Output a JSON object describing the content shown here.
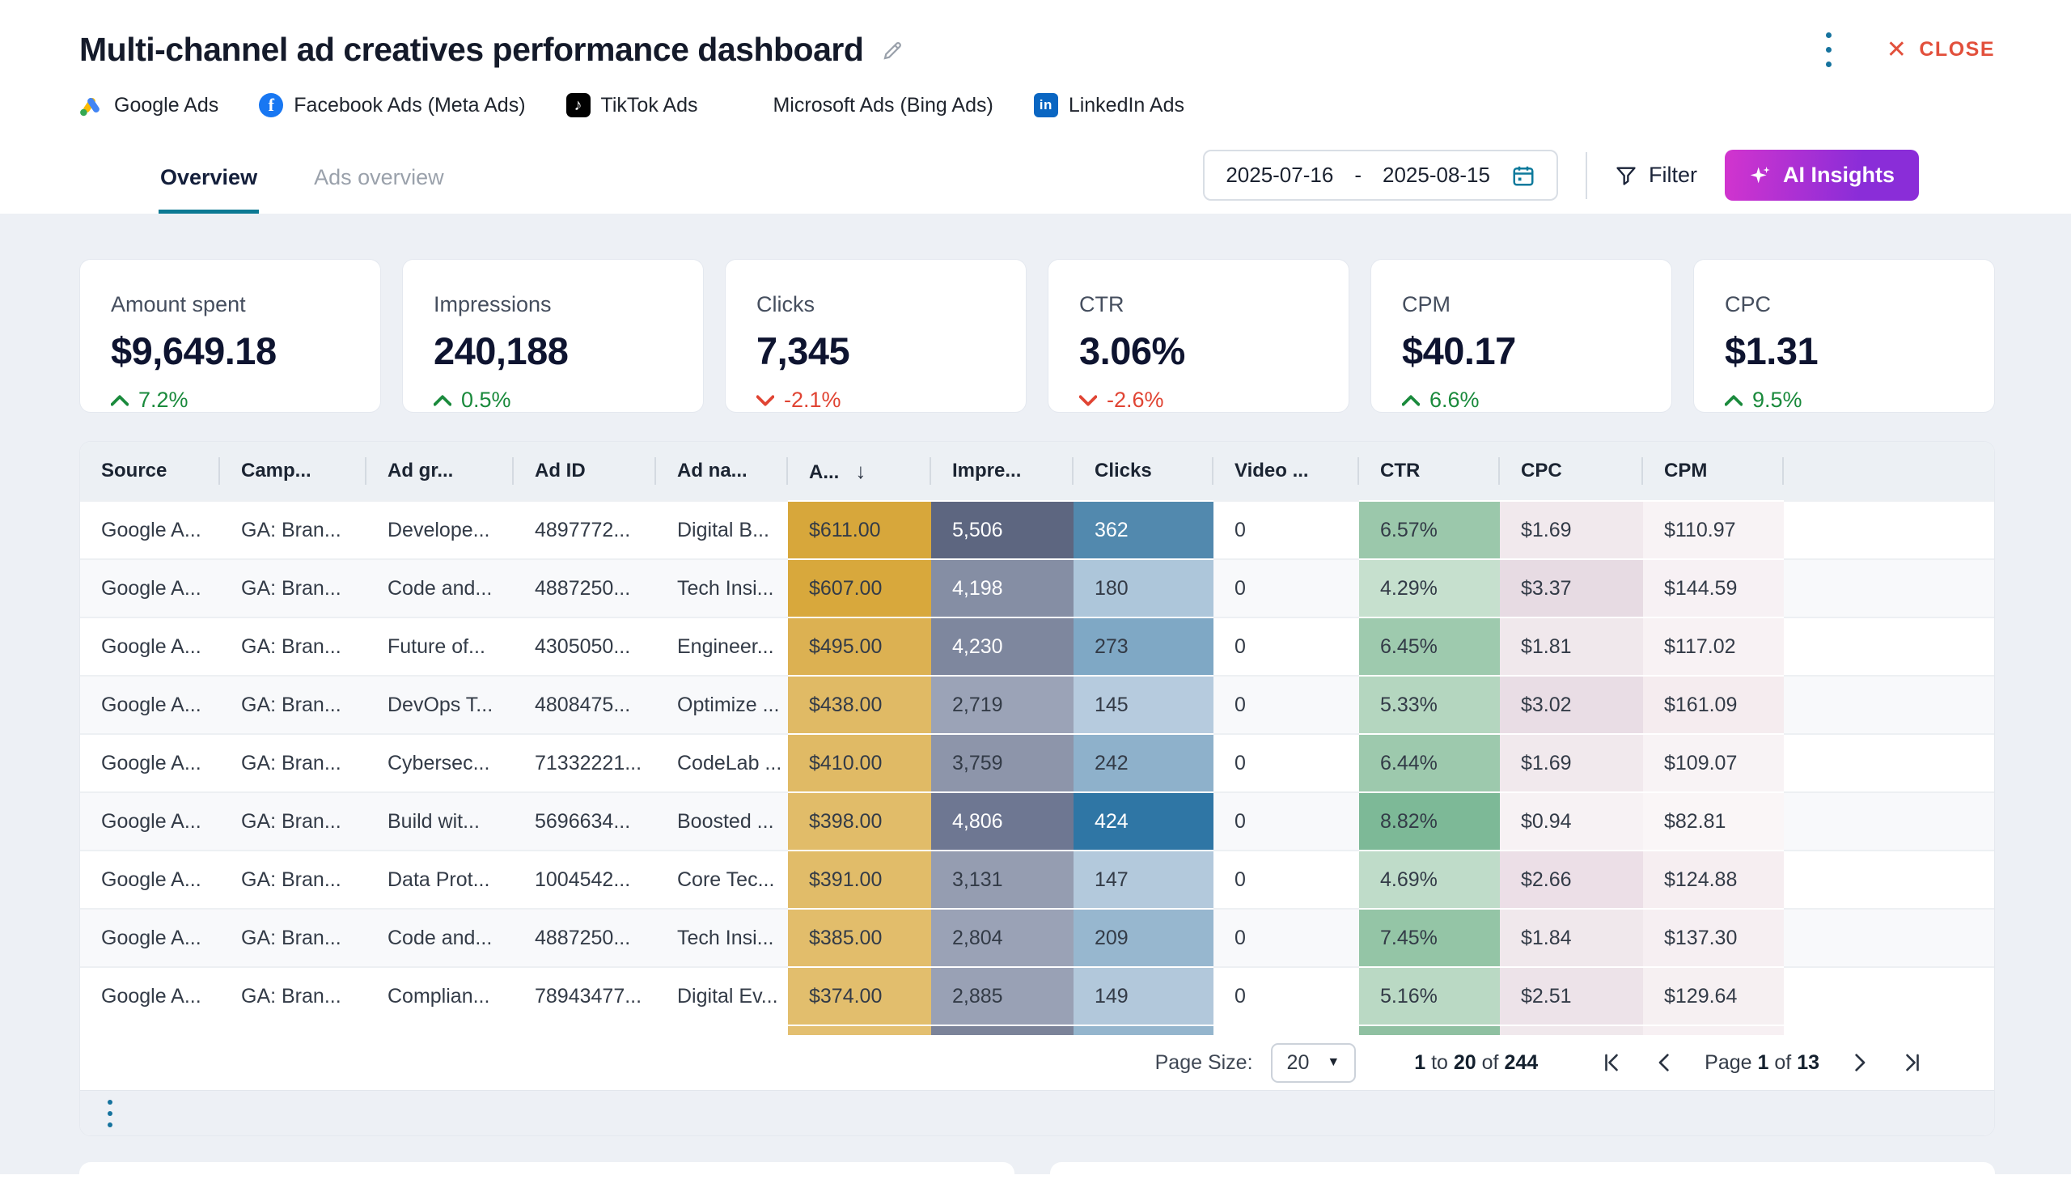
{
  "header": {
    "title": "Multi-channel ad creatives performance dashboard",
    "close_label": "CLOSE",
    "channels": [
      {
        "name": "Google Ads",
        "icon": "google-ads"
      },
      {
        "name": "Facebook Ads (Meta Ads)",
        "icon": "facebook"
      },
      {
        "name": "TikTok Ads",
        "icon": "tiktok"
      },
      {
        "name": "Microsoft Ads (Bing Ads)",
        "icon": "microsoft"
      },
      {
        "name": "LinkedIn Ads",
        "icon": "linkedin"
      }
    ]
  },
  "tabs": [
    {
      "label": "Overview",
      "active": true
    },
    {
      "label": "Ads overview",
      "active": false
    }
  ],
  "toolbar": {
    "date_start": "2025-07-16",
    "date_separator": "-",
    "date_end": "2025-08-15",
    "filter_label": "Filter",
    "ai_insights_label": "AI Insights"
  },
  "kpis": [
    {
      "label": "Amount spent",
      "value": "$9,649.18",
      "delta": "7.2%",
      "direction": "up"
    },
    {
      "label": "Impressions",
      "value": "240,188",
      "delta": "0.5%",
      "direction": "up"
    },
    {
      "label": "Clicks",
      "value": "7,345",
      "delta": "-2.1%",
      "direction": "down"
    },
    {
      "label": "CTR",
      "value": "3.06%",
      "delta": "-2.6%",
      "direction": "down"
    },
    {
      "label": "CPM",
      "value": "$40.17",
      "delta": "6.6%",
      "direction": "up"
    },
    {
      "label": "CPC",
      "value": "$1.31",
      "delta": "9.5%",
      "direction": "up"
    }
  ],
  "table": {
    "columns": [
      {
        "label": "Source"
      },
      {
        "label": "Camp..."
      },
      {
        "label": "Ad gr..."
      },
      {
        "label": "Ad ID"
      },
      {
        "label": "Ad na..."
      },
      {
        "label": "A...",
        "sorted": "desc"
      },
      {
        "label": "Impre..."
      },
      {
        "label": "Clicks"
      },
      {
        "label": "Video ..."
      },
      {
        "label": "CTR"
      },
      {
        "label": "CPC"
      },
      {
        "label": "CPM"
      },
      {
        "label": ""
      }
    ],
    "sort_icon": "↓",
    "rows": [
      {
        "cells": [
          {
            "t": "Google A..."
          },
          {
            "t": "GA: Bran..."
          },
          {
            "t": "Develope..."
          },
          {
            "t": "4897772..."
          },
          {
            "t": "Digital B..."
          },
          {
            "t": "$611.00",
            "bg": "#d7a73b"
          },
          {
            "t": "5,506",
            "bg": "#5d6680",
            "fg": "w"
          },
          {
            "t": "362",
            "bg": "#5289ae",
            "fg": "w"
          },
          {
            "t": "0"
          },
          {
            "t": "6.57%",
            "bg": "#9bc8ab"
          },
          {
            "t": "$1.69",
            "bg": "#f1e9ed"
          },
          {
            "t": "$110.97",
            "bg": "#f8f3f5"
          },
          {
            "t": ""
          }
        ]
      },
      {
        "cells": [
          {
            "t": "Google A..."
          },
          {
            "t": "GA: Bran..."
          },
          {
            "t": "Code and..."
          },
          {
            "t": "4887250..."
          },
          {
            "t": "Tech Insi..."
          },
          {
            "t": "$607.00",
            "bg": "#d8a83c"
          },
          {
            "t": "4,198",
            "bg": "#858ea4",
            "fg": "w"
          },
          {
            "t": "180",
            "bg": "#adc6da"
          },
          {
            "t": "0"
          },
          {
            "t": "4.29%",
            "bg": "#c6e0ce"
          },
          {
            "t": "$3.37",
            "bg": "#e7dbe3"
          },
          {
            "t": "$144.59",
            "bg": "#f7f1f4"
          },
          {
            "t": ""
          }
        ]
      },
      {
        "cells": [
          {
            "t": "Google A..."
          },
          {
            "t": "GA: Bran..."
          },
          {
            "t": "Future of..."
          },
          {
            "t": "4305050..."
          },
          {
            "t": "Engineer..."
          },
          {
            "t": "$495.00",
            "bg": "#dcb152"
          },
          {
            "t": "4,230",
            "bg": "#7e879e",
            "fg": "w"
          },
          {
            "t": "273",
            "bg": "#7fa8c5"
          },
          {
            "t": "0"
          },
          {
            "t": "6.45%",
            "bg": "#9ecaae"
          },
          {
            "t": "$1.81",
            "bg": "#f0e8ec"
          },
          {
            "t": "$117.02",
            "bg": "#f8f2f4"
          },
          {
            "t": ""
          }
        ]
      },
      {
        "cells": [
          {
            "t": "Google A..."
          },
          {
            "t": "GA: Bran..."
          },
          {
            "t": "DevOps T..."
          },
          {
            "t": "4808475..."
          },
          {
            "t": "Optimize ..."
          },
          {
            "t": "$438.00",
            "bg": "#e0ba65"
          },
          {
            "t": "2,719",
            "bg": "#9ba3b7"
          },
          {
            "t": "145",
            "bg": "#b6cbde"
          },
          {
            "t": "0"
          },
          {
            "t": "5.33%",
            "bg": "#b4d6bf"
          },
          {
            "t": "$3.02",
            "bg": "#e9dde5"
          },
          {
            "t": "$161.09",
            "bg": "#f5ecef"
          },
          {
            "t": ""
          }
        ]
      },
      {
        "cells": [
          {
            "t": "Google A..."
          },
          {
            "t": "GA: Bran..."
          },
          {
            "t": "Cybersec..."
          },
          {
            "t": "71332221..."
          },
          {
            "t": "CodeLab ..."
          },
          {
            "t": "$410.00",
            "bg": "#e0ba65"
          },
          {
            "t": "3,759",
            "bg": "#8d95aa"
          },
          {
            "t": "242",
            "bg": "#8eb1cb"
          },
          {
            "t": "0"
          },
          {
            "t": "6.44%",
            "bg": "#9dc9ad"
          },
          {
            "t": "$1.69",
            "bg": "#f1e9ed"
          },
          {
            "t": "$109.07",
            "bg": "#f8f3f5"
          },
          {
            "t": ""
          }
        ]
      },
      {
        "cells": [
          {
            "t": "Google A..."
          },
          {
            "t": "GA: Bran..."
          },
          {
            "t": "Build wit..."
          },
          {
            "t": "5696634..."
          },
          {
            "t": "Boosted ..."
          },
          {
            "t": "$398.00",
            "bg": "#e1bc69"
          },
          {
            "t": "4,806",
            "bg": "#6e7792",
            "fg": "w"
          },
          {
            "t": "424",
            "bg": "#2f76a5",
            "fg": "w"
          },
          {
            "t": "0"
          },
          {
            "t": "8.82%",
            "bg": "#7db997"
          },
          {
            "t": "$0.94",
            "bg": "#f7f2f4"
          },
          {
            "t": "$82.81",
            "bg": "#faf6f7"
          },
          {
            "t": ""
          }
        ]
      },
      {
        "cells": [
          {
            "t": "Google A..."
          },
          {
            "t": "GA: Bran..."
          },
          {
            "t": "Data Prot..."
          },
          {
            "t": "1004542..."
          },
          {
            "t": "Core Tec..."
          },
          {
            "t": "$391.00",
            "bg": "#e1bc69"
          },
          {
            "t": "3,131",
            "bg": "#959db1"
          },
          {
            "t": "147",
            "bg": "#b3c9dc"
          },
          {
            "t": "0"
          },
          {
            "t": "4.69%",
            "bg": "#bfdcc9"
          },
          {
            "t": "$2.66",
            "bg": "#ecdfe7"
          },
          {
            "t": "$124.88",
            "bg": "#f6eef1"
          },
          {
            "t": ""
          }
        ]
      },
      {
        "cells": [
          {
            "t": "Google A..."
          },
          {
            "t": "GA: Bran..."
          },
          {
            "t": "Code and..."
          },
          {
            "t": "4887250..."
          },
          {
            "t": "Tech Insi..."
          },
          {
            "t": "$385.00",
            "bg": "#e2bd6b"
          },
          {
            "t": "2,804",
            "bg": "#9aa2b6"
          },
          {
            "t": "209",
            "bg": "#97b7cf"
          },
          {
            "t": "0"
          },
          {
            "t": "7.45%",
            "bg": "#94c5a6"
          },
          {
            "t": "$1.84",
            "bg": "#f0e8ec"
          },
          {
            "t": "$137.30",
            "bg": "#f6eff2"
          },
          {
            "t": ""
          }
        ]
      },
      {
        "cells": [
          {
            "t": "Google A..."
          },
          {
            "t": "GA: Bran..."
          },
          {
            "t": "Complian..."
          },
          {
            "t": "78943477..."
          },
          {
            "t": "Digital Ev..."
          },
          {
            "t": "$374.00",
            "bg": "#e2be6d"
          },
          {
            "t": "2,885",
            "bg": "#99a1b5"
          },
          {
            "t": "149",
            "bg": "#b2c8db"
          },
          {
            "t": "0"
          },
          {
            "t": "5.16%",
            "bg": "#bad9c4"
          },
          {
            "t": "$2.51",
            "bg": "#ede3e9"
          },
          {
            "t": "$129.64",
            "bg": "#f6f0f2"
          },
          {
            "t": ""
          }
        ]
      }
    ],
    "cut_row": {
      "cells": [
        {
          "t": ""
        },
        {
          "t": ""
        },
        {
          "t": ""
        },
        {
          "t": ""
        },
        {
          "t": ""
        },
        {
          "t": "",
          "bg": "#e3bf70"
        },
        {
          "t": "",
          "bg": "#7b8399"
        },
        {
          "t": "",
          "bg": "#94b5cd"
        },
        {
          "t": ""
        },
        {
          "t": "",
          "bg": "#8fc0a1"
        },
        {
          "t": "",
          "bg": "#f0e8ec"
        },
        {
          "t": "",
          "bg": "#f7f0f3"
        },
        {
          "t": ""
        }
      ]
    }
  },
  "pagination": {
    "page_size_label": "Page Size:",
    "page_size_value": "20",
    "range_start": "1",
    "range_to": "to",
    "range_end": "20",
    "range_of": "of",
    "range_total": "244",
    "page_label": "Page",
    "page_current": "1",
    "page_of": "of",
    "page_total": "13"
  },
  "colors": {
    "accent_teal": "#0c7993",
    "close_red": "#e2503c",
    "kebab_blue": "#16739e",
    "positive_green": "#1a8a3c",
    "negative_red": "#e04433",
    "ai_gradient_start": "#d234ce",
    "ai_gradient_end": "#8a2dd8",
    "page_background": "#edf0f5"
  }
}
